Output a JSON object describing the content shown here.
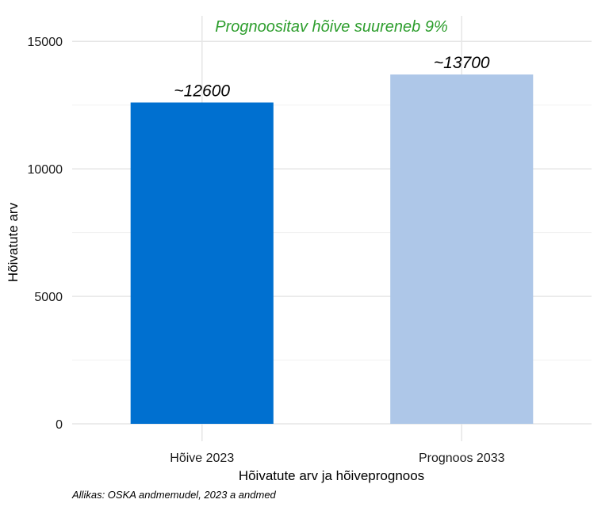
{
  "chart_data": {
    "type": "bar",
    "categories": [
      "Hõive 2023",
      "Prognoos 2033"
    ],
    "values": [
      12600,
      13700
    ],
    "data_labels": [
      "~12600",
      "~13700"
    ],
    "colors": [
      "#0070d0",
      "#aec7e8"
    ],
    "annotation": "Prognoositav hõive suureneb 9%",
    "annotation_color": "#2e9e2e",
    "xlabel": "Hõivatute arv ja hõiveprognoos",
    "ylabel": "Hõivatute arv",
    "ylim": [
      0,
      16000
    ],
    "yticks": [
      0,
      5000,
      10000,
      15000
    ],
    "grid": true,
    "caption": "Allikas: OSKA andmemudel, 2023 a andmed"
  }
}
